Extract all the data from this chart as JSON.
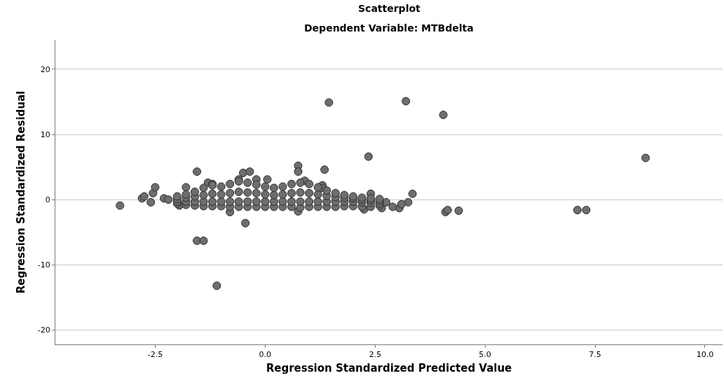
{
  "chart_data": {
    "type": "scatter",
    "title": "Scatterplot",
    "subtitle": "Dependent Variable: MTBdelta",
    "xlabel": "Regression Standardized Predicted Value",
    "ylabel": "Regression Standardized Residual",
    "xlim": [
      -4.77,
      10.4
    ],
    "ylim": [
      -22.2,
      24.5
    ],
    "xticks": [
      {
        "value": -2.5,
        "label": "-2.5"
      },
      {
        "value": 0,
        "label": "0.0"
      },
      {
        "value": 2.5,
        "label": "2.5"
      },
      {
        "value": 5,
        "label": "5.0"
      },
      {
        "value": 7.5,
        "label": "7.5"
      },
      {
        "value": 10,
        "label": "10.0"
      }
    ],
    "yticks": [
      -20,
      -10,
      0,
      10,
      20
    ],
    "grid": "y",
    "marker": "circle",
    "series": [
      {
        "color": "#6e6e6e",
        "x": [
          -3.3,
          -2.8,
          -2.75,
          -2.6,
          -2.55,
          -2.5,
          -2.3,
          -2.2,
          -1.55,
          -1.55,
          -1.4,
          -1.1,
          -0.45,
          -0.8,
          -0.5,
          -0.35,
          0.05,
          0.75,
          0.75,
          1.35,
          1.45,
          2.35,
          2.4,
          -1.8,
          -1.3,
          -1.2,
          -0.6,
          -0.2,
          1.3,
          1.3,
          0.9,
          2.25,
          2.65,
          -1.95,
          0.75,
          3.2,
          4.05,
          8.65,
          3.35,
          4.1,
          4.15,
          4.4,
          7.1,
          7.3,
          3.25,
          3.05,
          2.9,
          2.75,
          3.1,
          -2.0,
          -2.0,
          -2.0,
          -2.0,
          -1.8,
          -1.8,
          -1.8,
          -1.8,
          -1.6,
          -1.6,
          -1.6,
          -1.6,
          -1.4,
          -1.4,
          -1.4,
          -1.4,
          -1.2,
          -1.2,
          -1.2,
          -1.2,
          -1.0,
          -1.0,
          -1.0,
          -1.0,
          -0.8,
          -0.8,
          -0.8,
          -0.8,
          -0.6,
          -0.6,
          -0.6,
          -0.6,
          -0.4,
          -0.4,
          -0.4,
          -0.4,
          -0.2,
          -0.2,
          -0.2,
          -0.2,
          0.0,
          0.0,
          0.0,
          0.0,
          0.2,
          0.2,
          0.2,
          0.2,
          0.4,
          0.4,
          0.4,
          0.4,
          0.6,
          0.6,
          0.6,
          0.6,
          0.8,
          0.8,
          0.8,
          0.8,
          1.0,
          1.0,
          1.0,
          1.0,
          1.2,
          1.2,
          1.2,
          1.2,
          1.4,
          1.4,
          1.4,
          1.4,
          1.6,
          1.6,
          1.6,
          1.6,
          1.8,
          1.8,
          1.8,
          1.8,
          2.0,
          2.0,
          2.0,
          2.0,
          2.2,
          2.2,
          2.2,
          2.2,
          2.4,
          2.4,
          2.4,
          2.4,
          2.6,
          2.6,
          2.6,
          2.6
        ],
        "values": [
          -0.9,
          0.2,
          0.5,
          -0.4,
          1.0,
          1.9,
          0.2,
          0.0,
          4.3,
          -6.3,
          -6.3,
          -13.2,
          -3.6,
          -1.9,
          4.1,
          4.3,
          3.1,
          5.2,
          4.3,
          4.6,
          14.9,
          6.6,
          0.9,
          1.9,
          2.6,
          2.4,
          3.1,
          3.1,
          2.2,
          1.8,
          2.9,
          -1.5,
          -1.3,
          -0.9,
          -1.8,
          15.1,
          13.0,
          6.4,
          0.9,
          -1.9,
          -1.6,
          -1.7,
          -1.6,
          -1.6,
          -0.4,
          -1.3,
          -1.1,
          -0.4,
          -0.7,
          -0.6,
          -0.3,
          0.1,
          0.5,
          -0.8,
          -0.3,
          0.3,
          0.8,
          -0.9,
          -0.3,
          0.5,
          1.2,
          -1.0,
          -0.3,
          0.7,
          1.8,
          -1.0,
          -0.3,
          0.9,
          2.2,
          -1.0,
          -0.3,
          0.8,
          2.0,
          -1.1,
          -0.3,
          1.0,
          2.4,
          -1.1,
          -0.3,
          1.2,
          2.8,
          -1.1,
          -0.3,
          1.1,
          2.6,
          -1.1,
          -0.3,
          1.0,
          2.3,
          -1.1,
          -0.3,
          0.8,
          2.0,
          -1.1,
          -0.3,
          0.7,
          1.8,
          -1.1,
          -0.3,
          0.8,
          2.0,
          -1.1,
          -0.3,
          1.0,
          2.4,
          -1.2,
          -0.3,
          1.1,
          2.6,
          -1.1,
          -0.3,
          1.0,
          2.4,
          -1.1,
          -0.3,
          0.8,
          1.9,
          -1.1,
          -0.3,
          0.6,
          1.4,
          -1.1,
          -0.3,
          0.4,
          1.0,
          -1.0,
          -0.3,
          0.3,
          0.7,
          -1.0,
          -0.3,
          0.2,
          0.5,
          -1.1,
          -0.4,
          0.0,
          0.3,
          -1.1,
          -0.5,
          -0.1,
          0.2,
          -0.9,
          -0.6,
          -0.2,
          0.1
        ]
      }
    ]
  }
}
